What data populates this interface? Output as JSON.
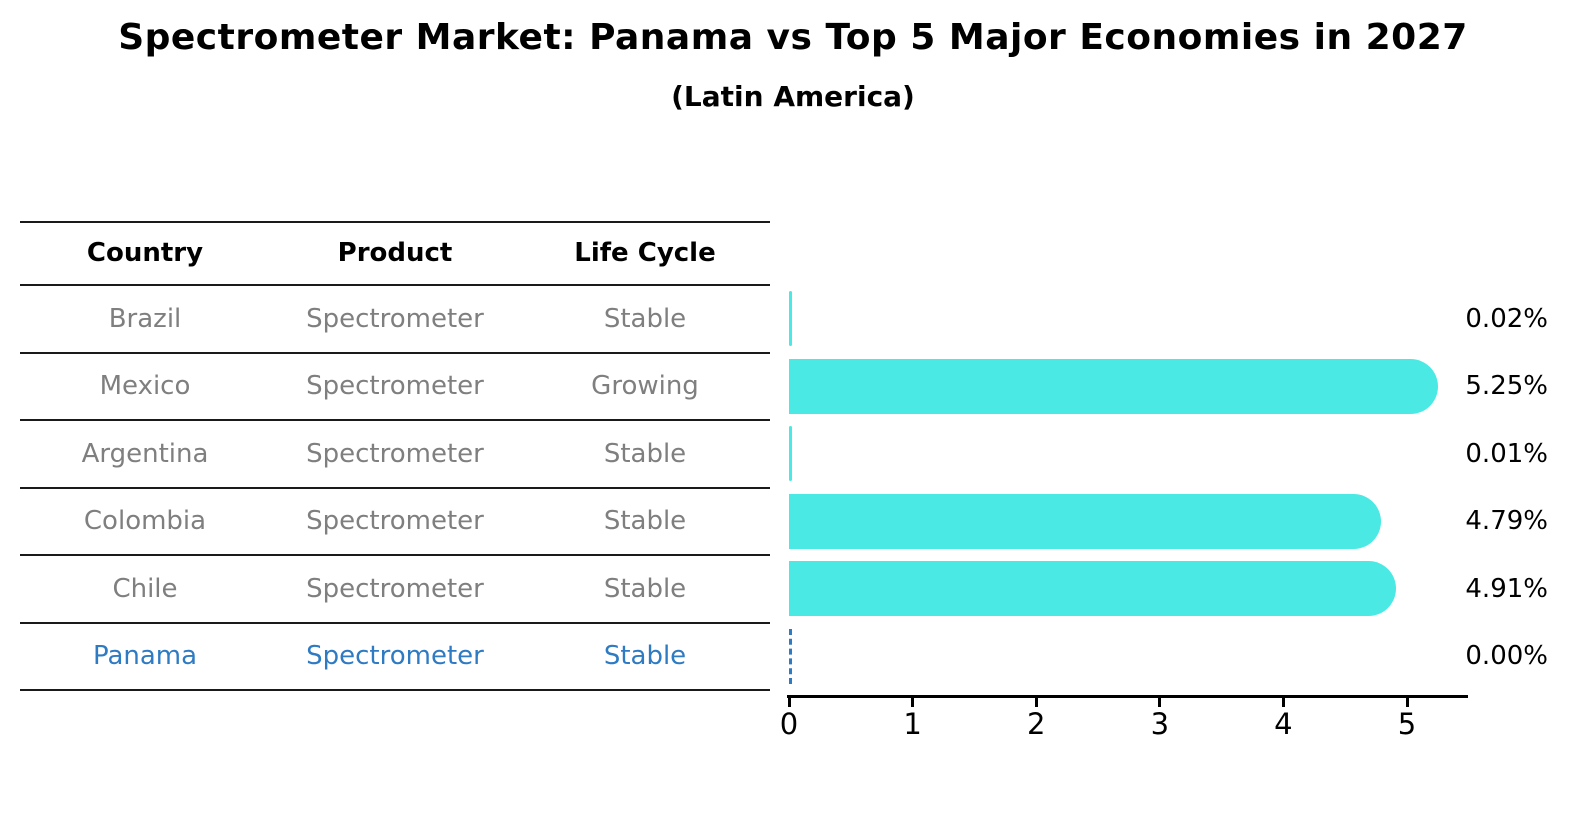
{
  "title": "Spectrometer Market: Panama vs Top 5 Major Economies in 2027",
  "subtitle": "(Latin America)",
  "table": {
    "headers": [
      "Country",
      "Product",
      "Life Cycle"
    ],
    "rows": [
      {
        "country": "Brazil",
        "product": "Spectrometer",
        "life_cycle": "Stable",
        "highlighted": false
      },
      {
        "country": "Mexico",
        "product": "Spectrometer",
        "life_cycle": "Growing",
        "highlighted": false
      },
      {
        "country": "Argentina",
        "product": "Spectrometer",
        "life_cycle": "Stable",
        "highlighted": false
      },
      {
        "country": "Colombia",
        "product": "Spectrometer",
        "life_cycle": "Stable",
        "highlighted": false
      },
      {
        "country": "Chile",
        "product": "Spectrometer",
        "life_cycle": "Stable",
        "highlighted": true,
        "note": ""
      },
      {
        "country": "Panama",
        "product": "Spectrometer",
        "life_cycle": "Stable",
        "highlighted": true
      }
    ]
  },
  "chart_data": {
    "type": "bar",
    "orientation": "horizontal",
    "title": "Spectrometer Market: Panama vs Top 5 Major Economies in 2027",
    "subtitle": "(Latin America)",
    "categories": [
      "Brazil",
      "Mexico",
      "Argentina",
      "Colombia",
      "Chile",
      "Panama"
    ],
    "values": [
      0.02,
      5.25,
      0.01,
      4.79,
      4.91,
      0.0
    ],
    "value_labels": [
      "0.02%",
      "5.25%",
      "0.01%",
      "4.79%",
      "4.91%",
      "0.00%"
    ],
    "xlabel": "",
    "ylabel": "",
    "xlim": [
      0,
      5.5
    ],
    "x_ticks": [
      "0",
      "1",
      "2",
      "3",
      "4",
      "5"
    ],
    "grid": false,
    "legend": "none",
    "highlight_index": 5,
    "highlight_style": "dashed-zero-line"
  },
  "colors": {
    "background": "#ffffff",
    "bar": "#4ae9e4",
    "highlight_blue": "#2e7bc3",
    "table_text_gray": "#7f7f7f",
    "text_black": "#000000",
    "line_black": "#1a1a1a"
  }
}
